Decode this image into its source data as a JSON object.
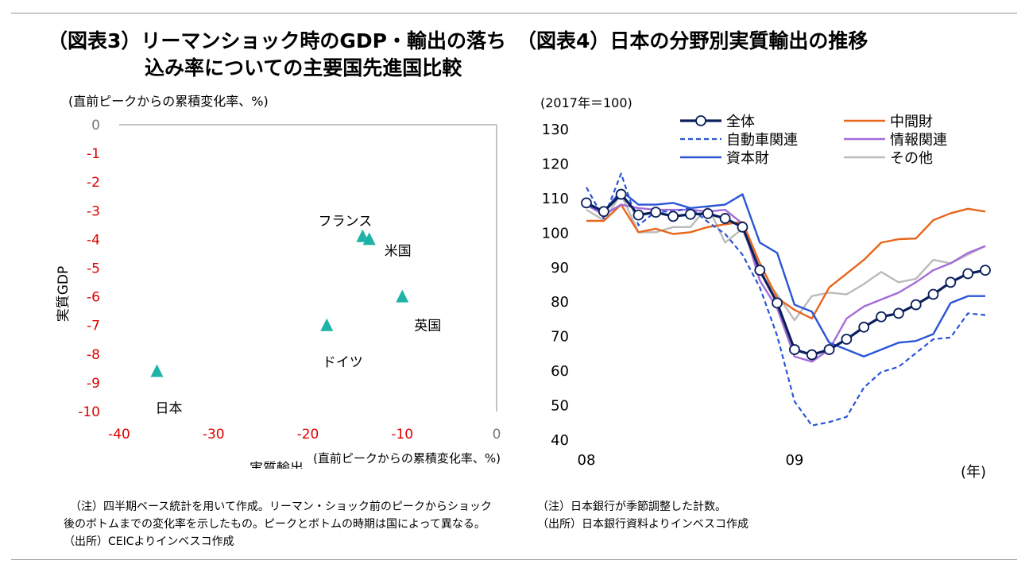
{
  "titles": {
    "left_line1": "（図表3）リーマンショック時のGDP・輸出の落ち",
    "left_line2": "込み率についての主要国先進国比較",
    "right": "（図表4）日本の分野別実質輸出の推移"
  },
  "left_unit": "(直前ピークからの累積変化率、%)",
  "right_unit": "(2017年＝100)",
  "notes_left": [
    "（注）四半期ベース統計を用いて作成。リーマン・ショック前のピークからショック",
    "後のボトムまでの変化率を示したもの。ピークとボトムの時期は国によって異なる。",
    "（出所）CEICよりインベスコ作成"
  ],
  "notes_right": [
    "（注）日本銀行が季節調整した計数。",
    "（出所）日本銀行資料よりインベスコ作成"
  ],
  "colors": {
    "marker": "#1fb3a8",
    "axis_red": "#e00000",
    "zero_gray": "#777777",
    "total": "#0a1f5c",
    "intermediate": "#e8651c",
    "auto": "#2a55d6",
    "info": "#a46cd8",
    "capital": "#2a55d6",
    "other": "#bbbbbb"
  },
  "chart_data": [
    {
      "type": "scatter",
      "ylabel": "実質GDP",
      "xlabel": "実質輸出",
      "xlabel_unit": "(直前ピークからの累積変化率、%)",
      "xlim": [
        -40,
        0
      ],
      "ylim": [
        -10,
        0
      ],
      "x_ticks": [
        "-40",
        "-30",
        "-20",
        "-10",
        "0"
      ],
      "y_ticks": [
        "0",
        "-1",
        "-2",
        "-3",
        "-4",
        "-5",
        "-6",
        "-7",
        "-8",
        "-9",
        "-10"
      ],
      "points": [
        {
          "label": "フランス",
          "x": -14.2,
          "y": -3.9
        },
        {
          "label": "米国",
          "x": -13.5,
          "y": -4.0
        },
        {
          "label": "英国",
          "x": -10.0,
          "y": -6.0
        },
        {
          "label": "ドイツ",
          "x": -18.0,
          "y": -7.0
        },
        {
          "label": "日本",
          "x": -36.0,
          "y": -8.6
        }
      ]
    },
    {
      "type": "line",
      "ylim": [
        40,
        130
      ],
      "y_ticks": [
        "130",
        "120",
        "110",
        "100",
        "90",
        "80",
        "70",
        "60",
        "50",
        "40"
      ],
      "x_labels": [
        "08",
        "09"
      ],
      "x_unit": "(年)",
      "series": [
        {
          "name": "全体",
          "style": "total",
          "values": [
            108.5,
            106,
            111,
            105,
            105.8,
            104.6,
            105.2,
            105.4,
            104,
            101.5,
            89,
            79.5,
            66,
            64.5,
            66,
            69,
            72.5,
            75.5,
            76.5,
            79,
            82,
            85.5,
            88,
            89
          ]
        },
        {
          "name": "中間財",
          "style": "intermediate",
          "values": [
            103.3,
            103.3,
            108,
            100,
            101,
            99.5,
            100,
            101.5,
            102.3,
            103,
            91,
            81,
            77.5,
            75,
            84,
            88,
            92,
            97,
            98,
            98.2,
            103.5,
            105.5,
            106.8,
            106
          ]
        },
        {
          "name": "自動車関連",
          "style": "auto",
          "values": [
            113,
            104,
            117,
            102,
            106,
            106,
            107,
            103,
            99.5,
            93.5,
            84,
            70,
            51,
            44,
            45,
            46.5,
            55,
            59.5,
            61,
            65,
            69,
            69.5,
            76.5,
            76
          ]
        },
        {
          "name": "情報関連",
          "style": "info",
          "values": [
            108,
            105,
            108,
            107,
            106.5,
            106.5,
            106.5,
            106,
            106.5,
            102.5,
            86,
            78,
            64,
            62.5,
            66,
            75,
            78.5,
            80.5,
            82.5,
            85.5,
            89,
            91,
            94,
            96
          ]
        },
        {
          "name": "資本財",
          "style": "capital",
          "values": [
            108,
            106,
            112,
            108,
            108,
            108.5,
            107,
            107.5,
            108,
            111,
            97,
            94,
            79,
            77,
            68,
            66,
            64,
            66,
            68,
            68.5,
            70.5,
            79.5,
            81.5,
            81.5
          ]
        },
        {
          "name": "その他",
          "style": "other",
          "values": [
            106.5,
            103.5,
            111,
            100,
            100,
            101.5,
            101.5,
            107.5,
            97,
            101,
            88,
            82,
            74.5,
            81.5,
            82.5,
            82,
            85,
            88.5,
            85.5,
            86.5,
            92,
            91,
            93.5,
            96
          ]
        }
      ]
    }
  ]
}
